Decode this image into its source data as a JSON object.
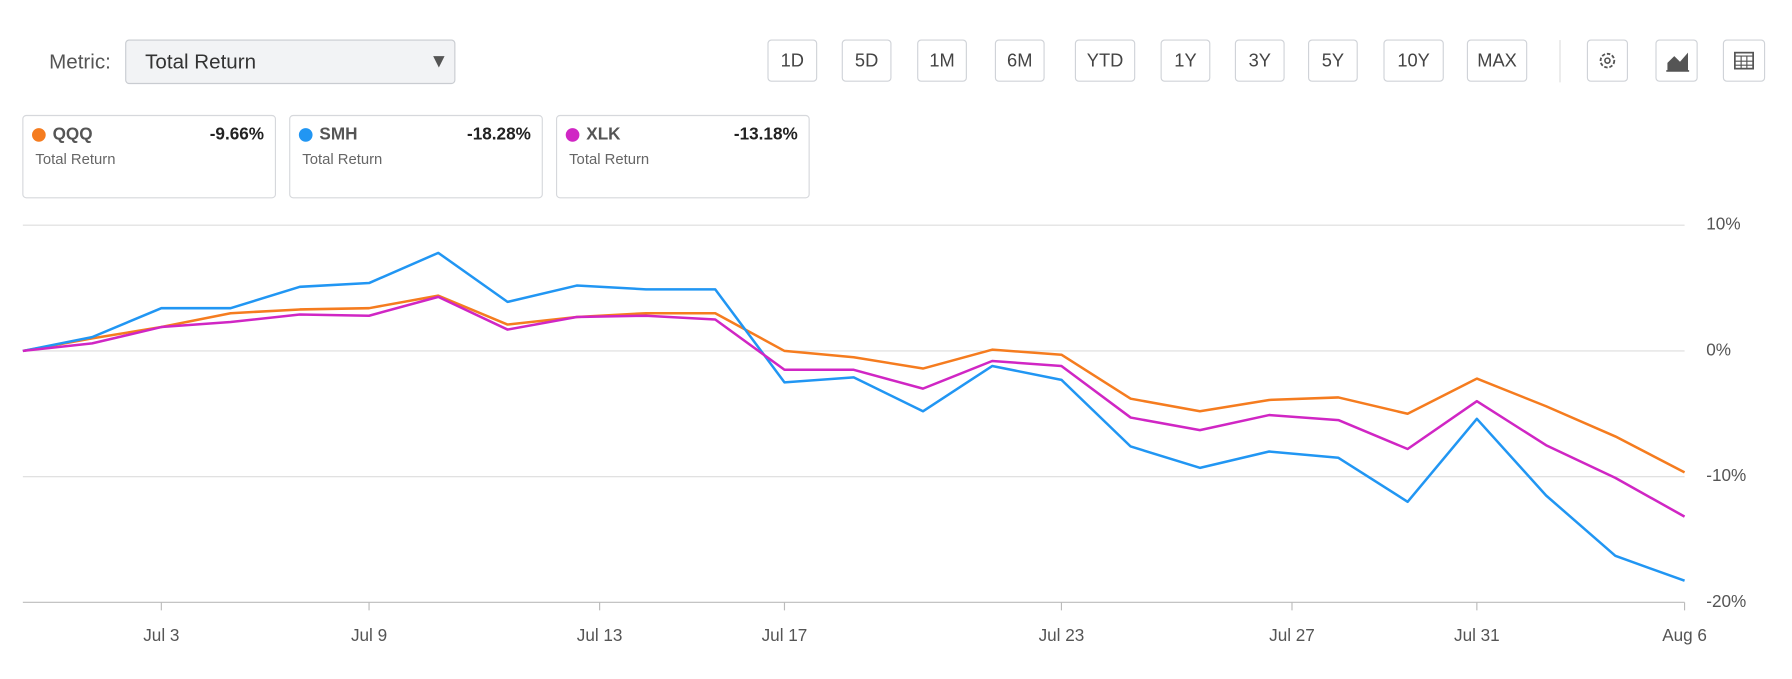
{
  "controls": {
    "metric_label": "Metric:",
    "metric": "Total Return",
    "periods": [
      "1D",
      "5D",
      "1M",
      "6M",
      "YTD",
      "1Y",
      "3Y",
      "5Y",
      "10Y",
      "MAX"
    ]
  },
  "chart_data": {
    "type": "line",
    "metric": "Total Return",
    "x": [
      0,
      1,
      2,
      3,
      4,
      5,
      6,
      7,
      8,
      9,
      10,
      11,
      12,
      13,
      14,
      15,
      16,
      17,
      18,
      19,
      20,
      21,
      22,
      23,
      24
    ],
    "xlim": [
      0,
      24
    ],
    "xticks": [
      {
        "value": 2,
        "label": "Jul 3"
      },
      {
        "value": 5,
        "label": "Jul 9"
      },
      {
        "value": 8.33,
        "label": "Jul 13"
      },
      {
        "value": 11,
        "label": "Jul 17"
      },
      {
        "value": 15,
        "label": "Jul 23"
      },
      {
        "value": 18.33,
        "label": "Jul 27"
      },
      {
        "value": 21,
        "label": "Jul 31"
      },
      {
        "value": 24,
        "label": "Aug 6"
      }
    ],
    "ylim": [
      -20,
      10
    ],
    "yticks": [
      {
        "value": 10,
        "label": "10%"
      },
      {
        "value": 0,
        "label": "0%"
      },
      {
        "value": -10,
        "label": "-10%"
      },
      {
        "value": -20,
        "label": "-20%"
      }
    ],
    "grid": true,
    "series": [
      {
        "name": "QQQ",
        "color": "#f57c1f",
        "change_label": "-9.66%",
        "values": [
          0,
          1.0,
          1.9,
          3.0,
          3.3,
          3.4,
          4.4,
          2.1,
          2.7,
          3.0,
          3.0,
          0,
          -0.5,
          -1.4,
          0.1,
          -0.3,
          -3.8,
          -4.8,
          -3.9,
          -3.7,
          -5.0,
          -2.2,
          -4.4,
          -6.8,
          -9.66
        ]
      },
      {
        "name": "SMH",
        "color": "#2196f3",
        "change_label": "-18.28%",
        "values": [
          0,
          1.1,
          3.4,
          3.4,
          5.1,
          5.4,
          7.8,
          3.9,
          5.2,
          4.9,
          4.9,
          -2.5,
          -2.1,
          -4.8,
          -1.2,
          -2.3,
          -7.6,
          -9.3,
          -8.0,
          -8.5,
          -12.0,
          -5.4,
          -11.5,
          -16.3,
          -18.28
        ]
      },
      {
        "name": "XLK",
        "color": "#d026c4",
        "change_label": "-13.18%",
        "values": [
          0,
          0.6,
          1.9,
          2.3,
          2.9,
          2.8,
          4.3,
          1.7,
          2.7,
          2.8,
          2.5,
          -1.5,
          -1.5,
          -3.0,
          -0.8,
          -1.2,
          -5.3,
          -6.3,
          -5.1,
          -5.5,
          -7.8,
          -4.0,
          -7.5,
          -10.1,
          -13.18
        ]
      }
    ]
  }
}
